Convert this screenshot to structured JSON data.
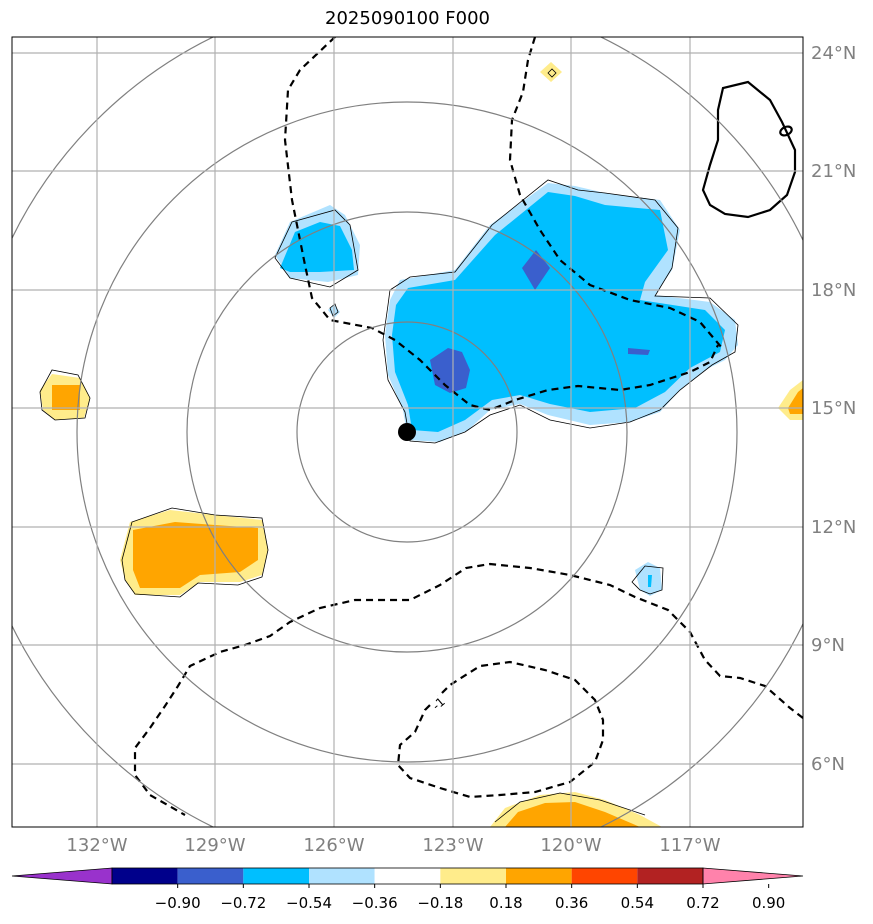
{
  "title": "2025090100 F000",
  "lon_labels": [
    "132°W",
    "129°W",
    "126°W",
    "123°W",
    "120°W",
    "117°W"
  ],
  "lat_labels": [
    "24°N",
    "21°N",
    "18°N",
    "15°N",
    "12°N",
    "9°N",
    "6°N"
  ],
  "contour_label": "-1",
  "colorbar": {
    "ticks": [
      "−0.90",
      "−0.72",
      "−0.54",
      "−0.36",
      "−0.18",
      "0.18",
      "0.36",
      "0.54",
      "0.72",
      "0.90"
    ],
    "colors": [
      "#9932cc",
      "#00008b",
      "#3a5fcd",
      "#00bfff",
      "#b0e2ff",
      "#ffffff",
      "#ffec8b",
      "#ffa500",
      "#ff4500",
      "#b22222",
      "#ff82ab"
    ]
  }
}
